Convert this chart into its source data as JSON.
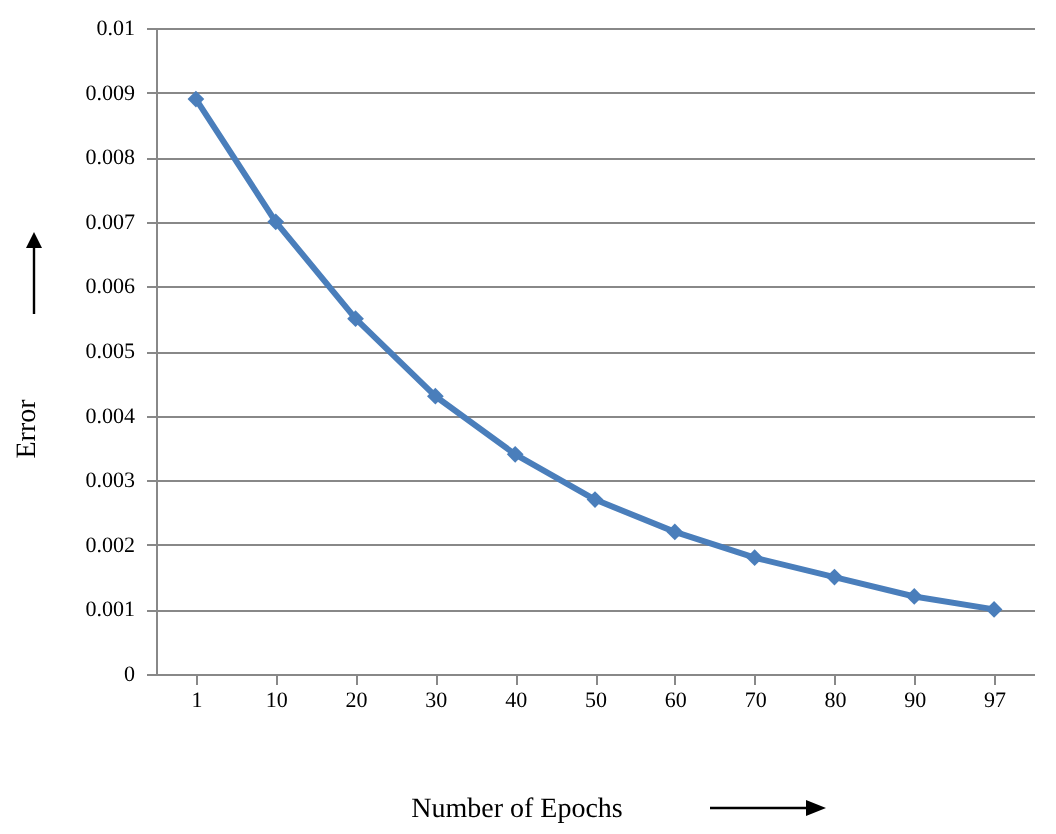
{
  "chart_data": {
    "type": "line",
    "xlabel": "Number of Epochs",
    "ylabel": "Error",
    "categories": [
      "1",
      "10",
      "20",
      "30",
      "40",
      "50",
      "60",
      "70",
      "80",
      "90",
      "97"
    ],
    "series": [
      {
        "color": "#4a7ebb",
        "values": [
          0.0089,
          0.007,
          0.0055,
          0.0043,
          0.0034,
          0.0027,
          0.0022,
          0.0018,
          0.0015,
          0.0012,
          0.001
        ]
      }
    ],
    "ylim": [
      0,
      0.01
    ],
    "yticks": [
      0,
      0.001,
      0.002,
      0.003,
      0.004,
      0.005,
      0.006,
      0.007,
      0.008,
      0.009,
      0.01
    ],
    "grid": "y",
    "marker": "diamond",
    "line_style": "solid"
  }
}
